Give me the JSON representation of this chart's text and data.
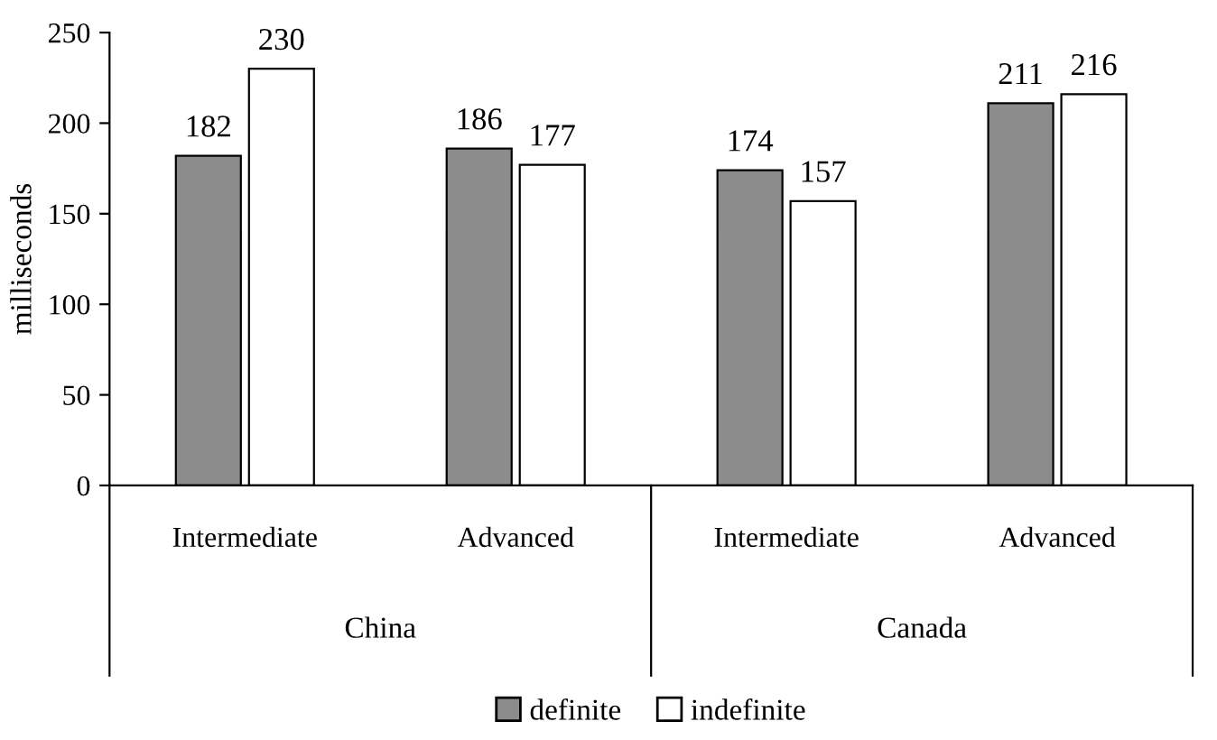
{
  "chart_data": {
    "type": "bar",
    "ylabel": "milliseconds",
    "categories": [
      "Intermediate",
      "Advanced",
      "Intermediate",
      "Advanced"
    ],
    "series": [
      {
        "name": "definite",
        "color": "#8c8c8c",
        "values": [
          182,
          186,
          174,
          211
        ]
      },
      {
        "name": "indefinite",
        "color": "#ffffff",
        "values": [
          230,
          177,
          157,
          216
        ]
      }
    ],
    "annotations": [
      "China",
      "Canada"
    ],
    "ylim": [
      0,
      250
    ],
    "yticks": [
      0,
      50,
      100,
      150,
      200,
      250
    ],
    "data_labels": true,
    "legend": "bottom",
    "grid": false
  }
}
